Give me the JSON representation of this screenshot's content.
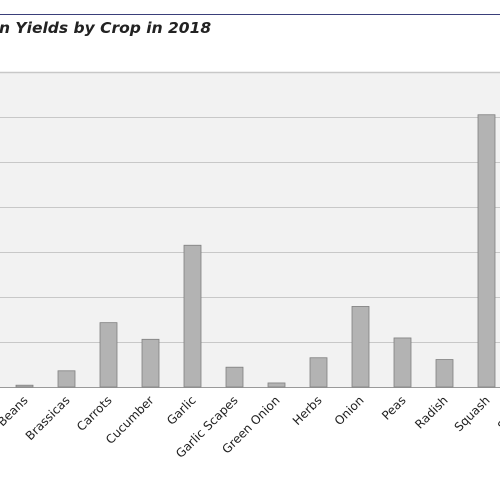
{
  "chart_data": {
    "type": "bar",
    "title": "n Yields by Crop in 2018",
    "xlabel": "",
    "ylabel": "",
    "categories": [
      "Beans",
      "Brassicas",
      "Carrots",
      "Cucumber",
      "Garlic",
      "Garlic Scapes",
      "Green Onion",
      "Herbs",
      "Onion",
      "Peas",
      "Radish",
      "Squash",
      "Strawb"
    ],
    "values": [
      0.4,
      3.6,
      14.3,
      10.6,
      31.5,
      4.4,
      0.9,
      6.5,
      17.9,
      10.9,
      6.1,
      60.5,
      0
    ],
    "ylim": [
      0,
      70
    ],
    "grid": true,
    "bar_color": "#b3b3b3",
    "bar_edge_color": "#7f7f7f",
    "plot_background": "#f2f2f2",
    "grid_color": "#c8c8c8",
    "rule_color": "#3a3f7a"
  }
}
